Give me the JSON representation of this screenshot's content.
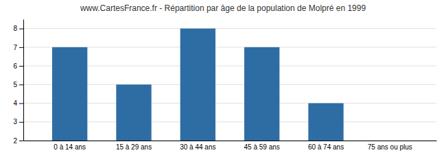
{
  "chart_data": {
    "type": "bar",
    "title": "www.CartesFrance.fr - Répartition par âge de la population de Molpré en 1999",
    "categories": [
      "0 à 14 ans",
      "15 à 29 ans",
      "30 à 44 ans",
      "45 à 59 ans",
      "60 à 74 ans",
      "75 ans ou plus"
    ],
    "values": [
      7,
      5,
      8,
      7,
      4,
      2
    ],
    "color": "#2e6da4",
    "ylim": [
      2,
      8.5
    ],
    "yticks": [
      2,
      3,
      4,
      5,
      6,
      7,
      8
    ],
    "grid": true
  }
}
